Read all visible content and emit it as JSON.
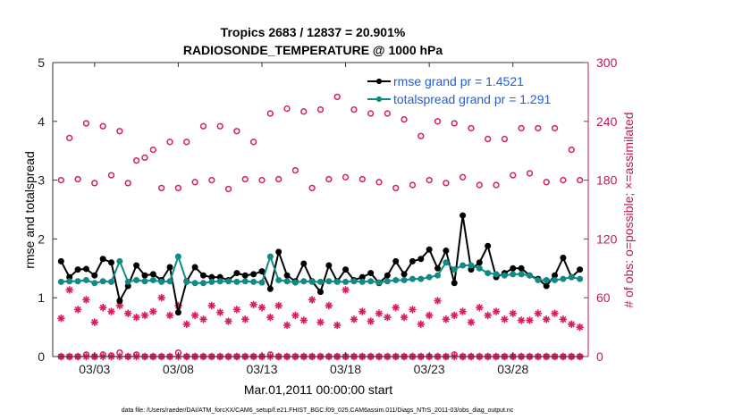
{
  "chart_data": {
    "type": "scatter",
    "title_line1": "Tropics 2683 / 12837 = 20.901%",
    "title_line2": "RADIOSONDE_TEMPERATURE @ 1000 hPa",
    "xlabel": "Mar.01,2011 00:00:00 start",
    "ylabel_left": "rmse and totalspread",
    "ylabel_right": "# of obs: o=possible; ×=assimilated",
    "ylim_left": [
      0,
      5
    ],
    "ylim_right": [
      0,
      300
    ],
    "xlim": [
      0.5,
      32.5
    ],
    "left_ticks": [
      0,
      1,
      2,
      3,
      4,
      5
    ],
    "left_tick_labels": [
      "0",
      "1",
      "2",
      "3",
      "4",
      "5"
    ],
    "right_ticks": [
      0,
      60,
      120,
      180,
      240,
      300
    ],
    "right_tick_labels": [
      "0",
      "60",
      "120",
      "180",
      "240",
      "300"
    ],
    "x_ticks": [
      3,
      8,
      13,
      18,
      23,
      28
    ],
    "x_tick_labels": [
      "03/03",
      "03/08",
      "03/13",
      "03/18",
      "03/23",
      "03/28"
    ],
    "colors": {
      "rmse": "#000000",
      "spread": "#0f8a84",
      "obs": "#d61f5c",
      "right_axis": "#c2185b",
      "legend_text": "#1f5fd6"
    },
    "legend": [
      {
        "label": "rmse grand pr = 1.4521",
        "series": "rmse"
      },
      {
        "label": "totalspread grand pr = 1.291",
        "series": "spread"
      }
    ],
    "series": [
      {
        "name": "rmse",
        "axis": "left",
        "x": [
          1.0,
          1.5,
          2.0,
          2.5,
          3.0,
          3.5,
          4.0,
          4.5,
          5.0,
          5.5,
          6.0,
          6.5,
          7.0,
          7.5,
          8.0,
          8.5,
          9.0,
          9.5,
          10.0,
          10.5,
          11.0,
          11.5,
          12.0,
          12.5,
          13.0,
          13.5,
          14.0,
          14.5,
          15.0,
          15.5,
          16.0,
          16.5,
          17.0,
          17.5,
          18.0,
          18.5,
          19.0,
          19.5,
          20.0,
          20.5,
          21.0,
          21.5,
          22.0,
          22.5,
          23.0,
          23.5,
          24.0,
          24.5,
          25.0,
          25.5,
          26.0,
          26.5,
          27.0,
          27.5,
          28.0,
          28.5,
          29.0,
          29.5,
          30.0,
          30.5,
          31.0,
          31.5,
          32.0
        ],
        "values": [
          1.62,
          1.35,
          1.48,
          1.49,
          1.38,
          1.66,
          1.6,
          0.95,
          1.2,
          1.55,
          1.38,
          1.4,
          1.3,
          1.52,
          0.75,
          1.28,
          1.52,
          1.38,
          1.35,
          1.35,
          1.3,
          1.42,
          1.38,
          1.4,
          1.45,
          1.15,
          1.78,
          1.38,
          1.28,
          1.58,
          1.28,
          1.1,
          1.55,
          1.28,
          1.48,
          1.3,
          1.35,
          1.42,
          1.25,
          1.38,
          1.62,
          1.4,
          1.62,
          1.66,
          1.82,
          1.5,
          1.8,
          1.25,
          2.4,
          1.48,
          1.6,
          1.88,
          1.35,
          1.42,
          1.5,
          1.5,
          1.38,
          1.32,
          1.2,
          1.38,
          1.68,
          1.35,
          1.48
        ]
      },
      {
        "name": "totalspread",
        "axis": "left",
        "x": [
          1.0,
          1.5,
          2.0,
          2.5,
          3.0,
          3.5,
          4.0,
          4.5,
          5.0,
          5.5,
          6.0,
          6.5,
          7.0,
          7.5,
          8.0,
          8.5,
          9.0,
          9.5,
          10.0,
          10.5,
          11.0,
          11.5,
          12.0,
          12.5,
          13.0,
          13.5,
          14.0,
          14.5,
          15.0,
          15.5,
          16.0,
          16.5,
          17.0,
          17.5,
          18.0,
          18.5,
          19.0,
          19.5,
          20.0,
          20.5,
          21.0,
          21.5,
          22.0,
          22.5,
          23.0,
          23.5,
          24.0,
          24.5,
          25.0,
          25.5,
          26.0,
          26.5,
          27.0,
          27.5,
          28.0,
          28.5,
          29.0,
          29.5,
          30.0,
          30.5,
          31.0,
          31.5,
          32.0
        ],
        "values": [
          1.27,
          1.28,
          1.28,
          1.3,
          1.25,
          1.28,
          1.27,
          1.62,
          1.27,
          1.3,
          1.28,
          1.3,
          1.27,
          1.28,
          1.7,
          1.27,
          1.25,
          1.25,
          1.27,
          1.28,
          1.28,
          1.27,
          1.28,
          1.27,
          1.26,
          1.7,
          1.3,
          1.28,
          1.26,
          1.28,
          1.27,
          1.27,
          1.28,
          1.27,
          1.27,
          1.28,
          1.27,
          1.28,
          1.26,
          1.28,
          1.3,
          1.3,
          1.32,
          1.32,
          1.35,
          1.38,
          1.6,
          1.48,
          1.55,
          1.55,
          1.5,
          1.42,
          1.4,
          1.38,
          1.4,
          1.4,
          1.38,
          1.3,
          1.3,
          1.3,
          1.32,
          1.35,
          1.32
        ]
      },
      {
        "name": "obs_possible",
        "axis": "right",
        "marker": "o",
        "x": [
          1.0,
          1.5,
          2.0,
          2.5,
          3.0,
          3.5,
          4.0,
          4.5,
          5.0,
          5.5,
          6.0,
          6.5,
          7.0,
          7.5,
          8.0,
          8.5,
          9.0,
          9.5,
          10.0,
          10.5,
          11.0,
          11.5,
          12.0,
          12.5,
          13.0,
          13.5,
          14.0,
          14.5,
          15.0,
          15.5,
          16.0,
          16.5,
          17.0,
          17.5,
          18.0,
          18.5,
          19.0,
          19.5,
          20.0,
          20.5,
          21.0,
          21.5,
          22.0,
          22.5,
          23.0,
          23.5,
          24.0,
          24.5,
          25.0,
          25.5,
          26.0,
          26.5,
          27.0,
          27.5,
          28.0,
          28.5,
          29.0,
          29.5,
          30.0,
          30.5,
          31.0,
          31.5,
          32.0
        ],
        "values": [
          180,
          223,
          181,
          238,
          177,
          235,
          185,
          230,
          177,
          200,
          203,
          211,
          172,
          219,
          172,
          219,
          178,
          235,
          180,
          235,
          171,
          230,
          181,
          219,
          180,
          248,
          181,
          253,
          190,
          250,
          172,
          252,
          181,
          265,
          183,
          252,
          181,
          248,
          178,
          248,
          172,
          242,
          175,
          225,
          180,
          240,
          177,
          238,
          183,
          233,
          175,
          222,
          175,
          222,
          185,
          233,
          187,
          233,
          178,
          233,
          180,
          211,
          180
        ]
      },
      {
        "name": "obs_assimilated",
        "axis": "right",
        "marker": "*",
        "x": [
          1.0,
          1.5,
          2.0,
          2.5,
          3.0,
          3.5,
          4.0,
          4.5,
          5.0,
          5.5,
          6.0,
          6.5,
          7.0,
          7.5,
          8.0,
          8.5,
          9.0,
          9.5,
          10.0,
          10.5,
          11.0,
          11.5,
          12.0,
          12.5,
          13.0,
          13.5,
          14.0,
          14.5,
          15.0,
          15.5,
          16.0,
          16.5,
          17.0,
          17.5,
          18.0,
          18.5,
          19.0,
          19.5,
          20.0,
          20.5,
          21.0,
          21.5,
          22.0,
          22.5,
          23.0,
          23.5,
          24.0,
          24.5,
          25.0,
          25.5,
          26.0,
          26.5,
          27.0,
          27.5,
          28.0,
          28.5,
          29.0,
          29.5,
          30.0,
          30.5,
          31.0,
          31.5,
          32.0
        ],
        "values": [
          39,
          68,
          48,
          58,
          35,
          50,
          46,
          52,
          44,
          40,
          42,
          46,
          60,
          42,
          52,
          33,
          42,
          38,
          52,
          45,
          36,
          48,
          38,
          53,
          50,
          40,
          52,
          32,
          42,
          37,
          58,
          35,
          52,
          32,
          68,
          38,
          46,
          36,
          44,
          40,
          50,
          40,
          48,
          33,
          42,
          57,
          38,
          42,
          46,
          35,
          50,
          42,
          46,
          38,
          44,
          37,
          37,
          44,
          38,
          44,
          38,
          33,
          30
        ]
      },
      {
        "name": "obs_zero_possible",
        "axis": "right",
        "marker": "o",
        "x": [
          1.0,
          1.5,
          2.0,
          2.5,
          3.0,
          3.5,
          4.0,
          4.5,
          5.0,
          5.5,
          6.0,
          6.5,
          7.0,
          7.5,
          8.0,
          8.5,
          9.0,
          9.5,
          10.0,
          10.5,
          11.0,
          11.5,
          12.0,
          12.5,
          13.0,
          13.5,
          14.0,
          14.5,
          15.0,
          15.5,
          16.0,
          16.5,
          17.0,
          17.5,
          18.0,
          18.5,
          19.0,
          19.5,
          20.0,
          20.5,
          21.0,
          21.5,
          22.0,
          22.5,
          23.0,
          23.5,
          24.0,
          24.5,
          25.0,
          25.5,
          26.0,
          26.5,
          27.0,
          27.5,
          28.0,
          28.5,
          29.0,
          29.5,
          30.0,
          30.5,
          31.0,
          31.5,
          32.0
        ],
        "values": [
          0,
          0,
          0,
          2,
          0,
          2,
          1,
          4,
          0,
          2,
          0,
          0,
          0,
          0,
          4,
          0,
          0,
          0,
          0,
          0,
          0,
          0,
          0,
          0,
          0,
          2,
          0,
          0,
          0,
          0,
          0,
          0,
          0,
          0,
          0,
          0,
          0,
          0,
          0,
          0,
          0,
          0,
          0,
          0,
          0,
          0,
          0,
          2,
          0,
          0,
          0,
          0,
          0,
          0,
          0,
          0,
          0,
          0,
          0,
          0,
          0,
          0,
          0
        ]
      },
      {
        "name": "obs_zero_assimilated",
        "axis": "right",
        "marker": "*",
        "x": [
          1.0,
          1.5,
          2.0,
          2.5,
          3.0,
          3.5,
          4.0,
          4.5,
          5.0,
          5.5,
          6.0,
          6.5,
          7.0,
          7.5,
          8.0,
          8.5,
          9.0,
          9.5,
          10.0,
          10.5,
          11.0,
          11.5,
          12.0,
          12.5,
          13.0,
          13.5,
          14.0,
          14.5,
          15.0,
          15.5,
          16.0,
          16.5,
          17.0,
          17.5,
          18.0,
          18.5,
          19.0,
          19.5,
          20.0,
          20.5,
          21.0,
          21.5,
          22.0,
          22.5,
          23.0,
          23.5,
          24.0,
          24.5,
          25.0,
          25.5,
          26.0,
          26.5,
          27.0,
          27.5,
          28.0,
          28.5,
          29.0,
          29.5,
          30.0,
          30.5,
          31.0,
          31.5,
          32.0
        ],
        "values": [
          0,
          0,
          0,
          0,
          0,
          0,
          0,
          0,
          0,
          0,
          0,
          0,
          0,
          0,
          0,
          0,
          0,
          0,
          0,
          0,
          0,
          0,
          0,
          0,
          0,
          0,
          0,
          0,
          0,
          0,
          0,
          0,
          0,
          0,
          0,
          0,
          0,
          0,
          0,
          0,
          0,
          0,
          0,
          0,
          0,
          0,
          0,
          0,
          0,
          0,
          0,
          0,
          0,
          0,
          0,
          0,
          0,
          0,
          0,
          0,
          0,
          0,
          0
        ]
      }
    ],
    "footer": "data file: /Users/raeder/DAI/ATM_forcXX/CAM6_setup/f.e21.FHIST_BGC.f09_025.CAM6assim.011/Diags_NTrS_2011-03/obs_diag_output.nc"
  }
}
